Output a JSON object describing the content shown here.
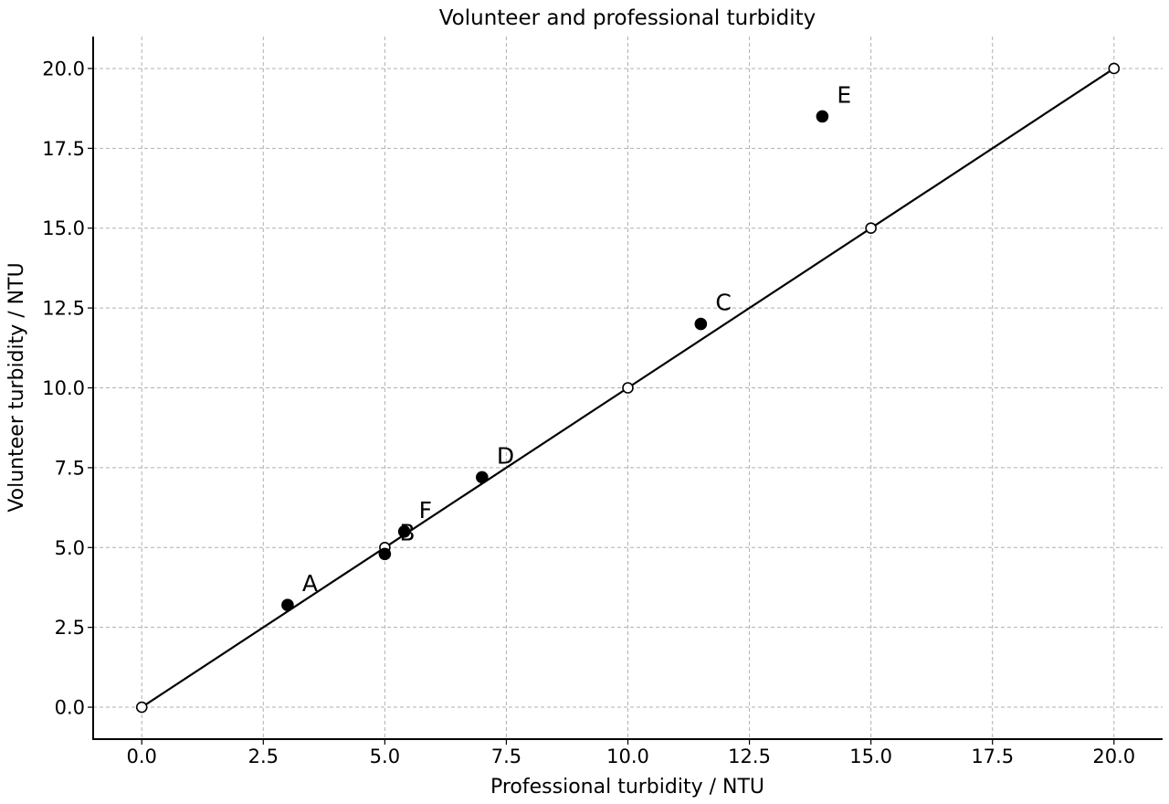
{
  "chart_data": {
    "type": "scatter",
    "title": "Volunteer and professional turbidity",
    "xlabel": "Professional turbidity / NTU",
    "ylabel": "Volunteer turbidity / NTU",
    "xlim": [
      -1,
      21
    ],
    "ylim": [
      -1,
      21
    ],
    "x_ticks": [
      0.0,
      2.5,
      5.0,
      7.5,
      10.0,
      12.5,
      15.0,
      17.5,
      20.0
    ],
    "y_ticks": [
      0.0,
      2.5,
      5.0,
      7.5,
      10.0,
      12.5,
      15.0,
      17.5,
      20.0
    ],
    "x_tick_labels": [
      "0.0",
      "2.5",
      "5.0",
      "7.5",
      "10.0",
      "12.5",
      "15.0",
      "17.5",
      "20.0"
    ],
    "y_tick_labels": [
      "0.0",
      "2.5",
      "5.0",
      "7.5",
      "10.0",
      "12.5",
      "15.0",
      "17.5",
      "20.0"
    ],
    "grid": true,
    "legend": "none",
    "reference_line": {
      "points": [
        {
          "x": 0,
          "y": 0
        },
        {
          "x": 5,
          "y": 5
        },
        {
          "x": 10,
          "y": 10
        },
        {
          "x": 15,
          "y": 15
        },
        {
          "x": 20,
          "y": 20
        }
      ],
      "color": "#000000",
      "marker": "open-circle"
    },
    "series": [
      {
        "marker": "filled-circle",
        "color": "#000000",
        "points": [
          {
            "label": "A",
            "x": 3.0,
            "y": 3.2
          },
          {
            "label": "B",
            "x": 5.0,
            "y": 4.8
          },
          {
            "label": "C",
            "x": 11.5,
            "y": 12.0
          },
          {
            "label": "D",
            "x": 7.0,
            "y": 7.2
          },
          {
            "label": "E",
            "x": 14.0,
            "y": 18.5
          },
          {
            "label": "F",
            "x": 5.4,
            "y": 5.5
          }
        ]
      }
    ]
  }
}
